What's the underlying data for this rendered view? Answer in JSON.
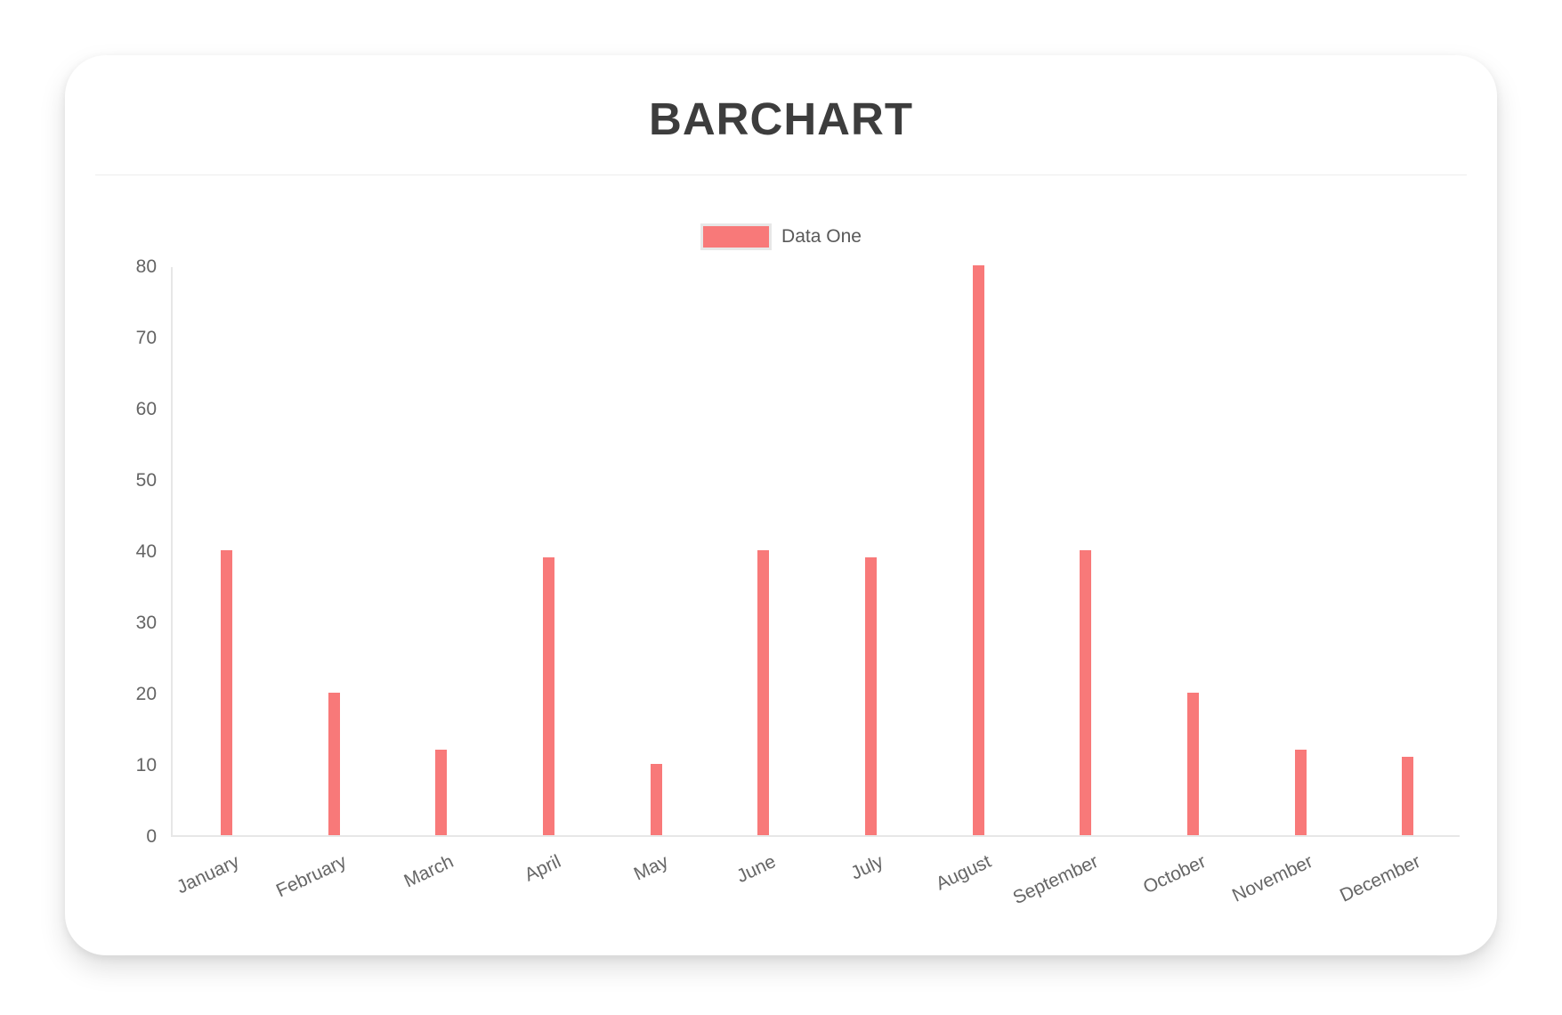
{
  "chart_data": {
    "type": "bar",
    "title": "BARCHART",
    "categories": [
      "January",
      "February",
      "March",
      "April",
      "May",
      "June",
      "July",
      "August",
      "September",
      "October",
      "November",
      "December"
    ],
    "series": [
      {
        "name": "Data One",
        "color": "#f87979",
        "values": [
          40,
          20,
          12,
          39,
          10,
          40,
          39,
          80,
          40,
          20,
          12,
          11
        ]
      }
    ],
    "xlabel": "",
    "ylabel": "",
    "ylim": [
      0,
      80
    ],
    "yticks": [
      0,
      10,
      20,
      30,
      40,
      50,
      60,
      70,
      80
    ],
    "grid": false,
    "legend_position": "top",
    "colors": {
      "bar": "#f87979",
      "axis": "#e7e7e7",
      "title_text": "#3d3d3d",
      "tick_text": "#646464",
      "legend_text": "#595959"
    }
  }
}
